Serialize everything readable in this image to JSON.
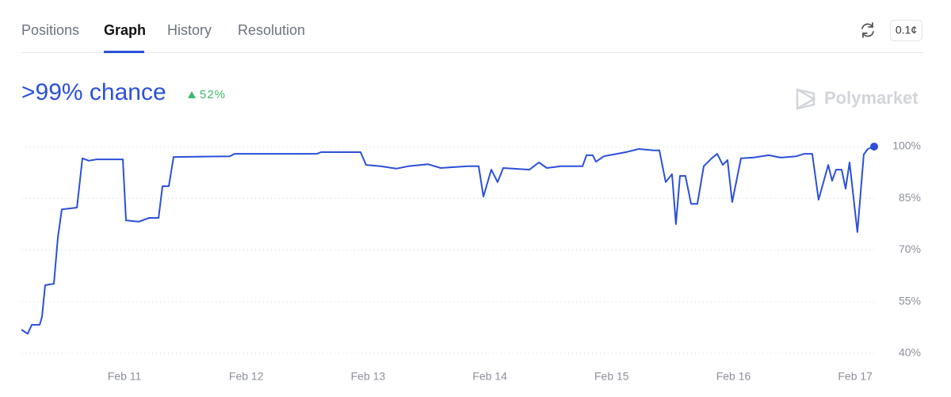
{
  "tabs": [
    "Positions",
    "Graph",
    "History",
    "Resolution"
  ],
  "unit_button": "0.1¢",
  "headline": ">99% chance",
  "change": "52%",
  "brand": "Polymarket",
  "chart_data": {
    "type": "line",
    "color": "#2b50d9",
    "x": [
      10.154,
      10.206,
      10.239,
      10.304,
      10.323,
      10.349,
      10.421,
      10.453,
      10.486,
      10.61,
      10.655,
      10.707,
      10.772,
      10.987,
      11.013,
      11.117,
      11.202,
      11.28,
      11.312,
      11.364,
      11.403,
      11.865,
      11.904,
      12.581,
      12.614,
      12.939,
      12.984,
      13.102,
      13.232,
      13.329,
      13.492,
      13.596,
      13.817,
      13.908,
      13.947,
      14.012,
      14.064,
      14.11,
      14.325,
      14.403,
      14.468,
      14.585,
      14.761,
      14.793,
      14.845,
      14.871,
      14.936,
      15.118,
      15.223,
      15.346,
      15.392,
      15.444,
      15.496,
      15.528,
      15.561,
      15.606,
      15.652,
      15.704,
      15.756,
      15.821,
      15.867,
      15.912,
      15.951,
      15.99,
      16.062,
      16.159,
      16.29,
      16.387,
      16.517,
      16.582,
      16.647,
      16.699,
      16.778,
      16.81,
      16.843,
      16.888,
      16.921,
      16.953,
      17.018,
      17.07,
      17.103,
      17.155
    ],
    "values": [
      46.9,
      45.7,
      48.3,
      48.3,
      50.6,
      59.8,
      60.2,
      73.6,
      81.8,
      82.3,
      96.6,
      95.9,
      96.3,
      96.3,
      78.6,
      78.2,
      79.3,
      79.3,
      88.5,
      88.5,
      97.0,
      97.2,
      97.9,
      97.9,
      98.4,
      98.4,
      94.7,
      94.3,
      93.6,
      94.3,
      94.9,
      93.8,
      94.3,
      94.3,
      85.5,
      93.3,
      89.7,
      93.8,
      93.3,
      95.4,
      93.8,
      94.3,
      94.3,
      97.5,
      97.5,
      95.6,
      97.2,
      98.4,
      99.3,
      98.9,
      98.9,
      89.7,
      92.0,
      77.5,
      91.5,
      91.5,
      83.4,
      83.4,
      94.3,
      96.6,
      97.9,
      94.7,
      96.1,
      83.9,
      96.6,
      96.8,
      97.5,
      96.8,
      97.2,
      97.9,
      97.9,
      84.6,
      94.7,
      90.1,
      93.3,
      93.3,
      87.8,
      95.4,
      75.2,
      97.7,
      99.3,
      100
    ],
    "xlim": [
      10.154,
      17.155
    ],
    "xticks": [
      {
        "value": 11,
        "label": "Feb 11"
      },
      {
        "value": 12,
        "label": "Feb 12"
      },
      {
        "value": 13,
        "label": "Feb 13"
      },
      {
        "value": 14,
        "label": "Feb 14"
      },
      {
        "value": 15,
        "label": "Feb 15"
      },
      {
        "value": 16,
        "label": "Feb 16"
      },
      {
        "value": 17,
        "label": "Feb 17"
      }
    ],
    "ylim": [
      40,
      100
    ],
    "yticks": [
      {
        "value": 40,
        "label": "40%"
      },
      {
        "value": 55,
        "label": "55%"
      },
      {
        "value": 70,
        "label": "70%"
      },
      {
        "value": 85,
        "label": "85%"
      },
      {
        "value": 100,
        "label": "100%"
      }
    ],
    "grid": true
  }
}
